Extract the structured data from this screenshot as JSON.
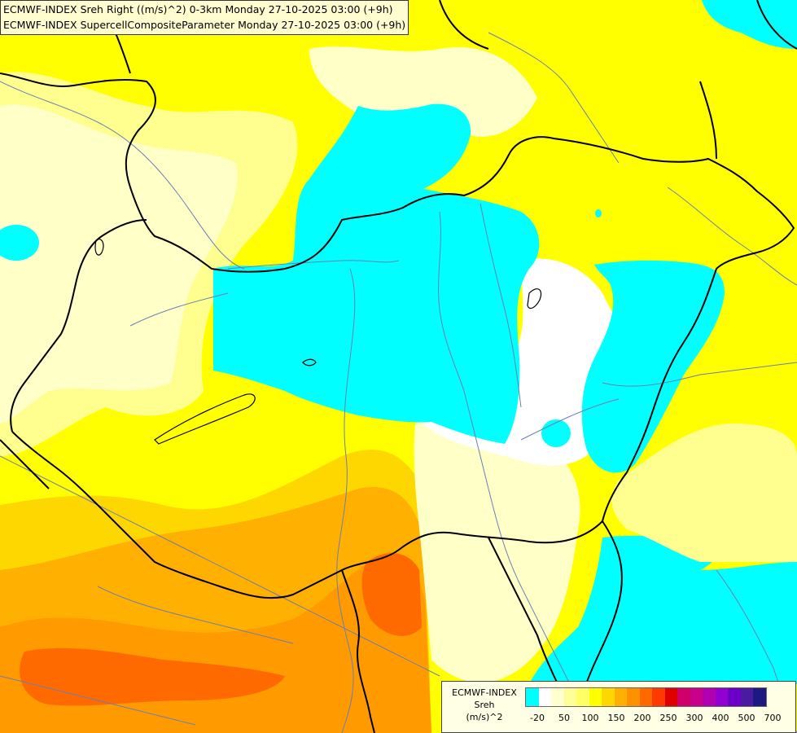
{
  "header": {
    "line1": "ECMWF-INDEX Sreh Right ((m/s)^2) 0-3km Monday 27-10-2025 03:00 (+9h)",
    "line2": "ECMWF-INDEX SupercellCompositeParameter Monday 27-10-2025 03:00 (+9h)"
  },
  "legend": {
    "title_lines": [
      "ECMWF-INDEX",
      "Sreh",
      "(m/s)^2"
    ],
    "ticks": [
      "-20",
      "50",
      "100",
      "150",
      "200",
      "250",
      "300",
      "400",
      "500",
      "700"
    ],
    "colors": [
      "#00ffff",
      "#ffffff",
      "#ffffd0",
      "#ffff99",
      "#ffff66",
      "#ffff00",
      "#ffd700",
      "#ffb000",
      "#ff9000",
      "#ff6a00",
      "#ff3a00",
      "#e00000",
      "#d0006a",
      "#c8008c",
      "#b000b0",
      "#9000d0",
      "#6a00c8",
      "#4a1aa0",
      "#1a1a80"
    ]
  },
  "map": {
    "palette": {
      "cyan": "#00ffff",
      "white": "#ffffff",
      "pale": "#ffffc8",
      "lightyellow": "#ffff80",
      "yellow": "#ffff00",
      "gold": "#ffd700",
      "orange": "#ffb000",
      "darkorange": "#ff8c00",
      "red": "#ff5a00",
      "border": "#000000",
      "river": "#6b7fb0"
    }
  }
}
